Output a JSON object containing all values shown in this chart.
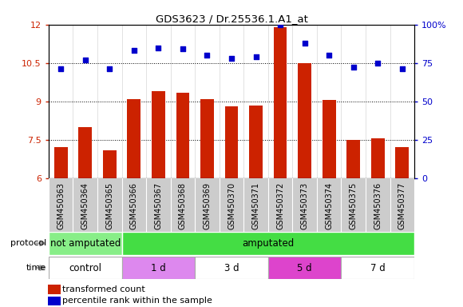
{
  "title": "GDS3623 / Dr.25536.1.A1_at",
  "samples": [
    "GSM450363",
    "GSM450364",
    "GSM450365",
    "GSM450366",
    "GSM450367",
    "GSM450368",
    "GSM450369",
    "GSM450370",
    "GSM450371",
    "GSM450372",
    "GSM450373",
    "GSM450374",
    "GSM450375",
    "GSM450376",
    "GSM450377"
  ],
  "bar_values": [
    7.2,
    8.0,
    7.1,
    9.1,
    9.4,
    9.35,
    9.1,
    8.8,
    8.85,
    11.9,
    10.5,
    9.05,
    7.5,
    7.55,
    7.2
  ],
  "scatter_values": [
    71,
    77,
    71,
    83,
    85,
    84,
    80,
    78,
    79,
    100,
    88,
    80,
    72,
    75,
    71
  ],
  "bar_color": "#cc2200",
  "scatter_color": "#0000cc",
  "ylim_left": [
    6,
    12
  ],
  "ylim_right": [
    0,
    100
  ],
  "yticks_left": [
    6,
    7.5,
    9,
    10.5,
    12
  ],
  "yticks_right": [
    0,
    25,
    50,
    75,
    100
  ],
  "ytick_labels_right": [
    "0",
    "25",
    "50",
    "75",
    "100%"
  ],
  "hlines": [
    7.5,
    9.0,
    10.5
  ],
  "protocol_labels": [
    "not amputated",
    "amputated"
  ],
  "protocol_ranges": [
    [
      0,
      3
    ],
    [
      3,
      15
    ]
  ],
  "protocol_colors": [
    "#88ee88",
    "#44dd44"
  ],
  "time_labels": [
    "control",
    "1 d",
    "3 d",
    "5 d",
    "7 d"
  ],
  "time_ranges": [
    [
      0,
      3
    ],
    [
      3,
      6
    ],
    [
      6,
      9
    ],
    [
      9,
      12
    ],
    [
      12,
      15
    ]
  ],
  "time_colors": [
    "#ffffff",
    "#dd88ee",
    "#ffffff",
    "#dd44cc",
    "#ffffff"
  ],
  "legend_bar_label": "transformed count",
  "legend_scatter_label": "percentile rank within the sample",
  "xtick_bg": "#cccccc",
  "plot_bg": "#ffffff"
}
